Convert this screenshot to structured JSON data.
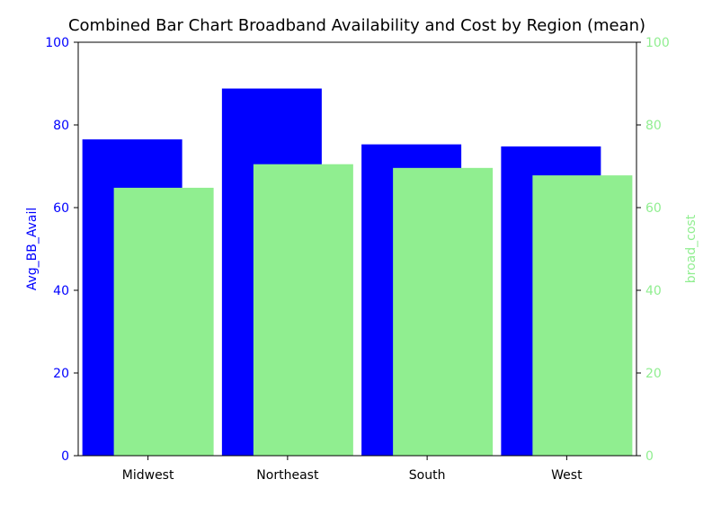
{
  "chart_data": {
    "type": "bar",
    "title": "Combined Bar Chart Broadband Availability and Cost by Region (mean)",
    "categories": [
      "Midwest",
      "Northeast",
      "South",
      "West"
    ],
    "series": [
      {
        "name": "Avg_BB_Avail",
        "axis": "left",
        "color": "#0000ff",
        "values": [
          76.5,
          88.8,
          75.3,
          74.8
        ]
      },
      {
        "name": "broad_cost",
        "axis": "right",
        "color": "#90ee90",
        "values": [
          64.8,
          70.5,
          69.6,
          67.8
        ]
      }
    ],
    "ylabel_left": "Avg_BB_Avail",
    "ylabel_right": "broad_cost",
    "ylim_left": [
      0,
      100
    ],
    "ylim_right": [
      0,
      100
    ],
    "yticks": [
      0,
      20,
      40,
      60,
      80,
      100
    ],
    "left_axis_color": "#0000ff",
    "right_axis_color": "#90ee90",
    "grid": false,
    "legend": "none"
  }
}
